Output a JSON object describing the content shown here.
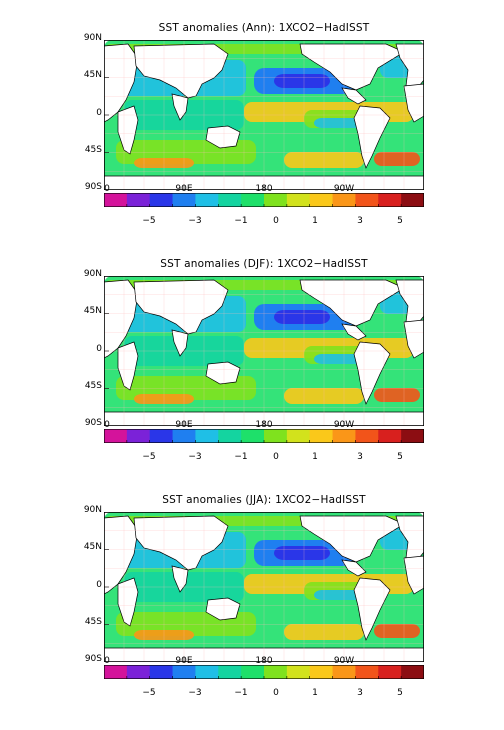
{
  "panels": [
    {
      "title": "SST anomalies (Ann): 1XCO2−HadISST"
    },
    {
      "title": "SST anomalies (DJF): 1XCO2−HadISST"
    },
    {
      "title": "SST anomalies (JJA): 1XCO2−HadISST"
    }
  ],
  "axes": {
    "lat_labels": [
      "90N",
      "45N",
      "0",
      "45S",
      "90S"
    ],
    "lon_labels": [
      "0",
      "90E",
      "180",
      "90W"
    ]
  },
  "colorbar": {
    "labels": [
      "−5",
      "−3",
      "−1",
      "0",
      "1",
      "3",
      "5"
    ],
    "colors": [
      "#d4139b",
      "#7b22d8",
      "#2a36e8",
      "#1f7ff0",
      "#1fbfe6",
      "#14d4a0",
      "#1ee06a",
      "#7fe21e",
      "#d2e21c",
      "#fac81a",
      "#fa9618",
      "#f2541a",
      "#d8201e",
      "#8c0d12"
    ]
  }
}
